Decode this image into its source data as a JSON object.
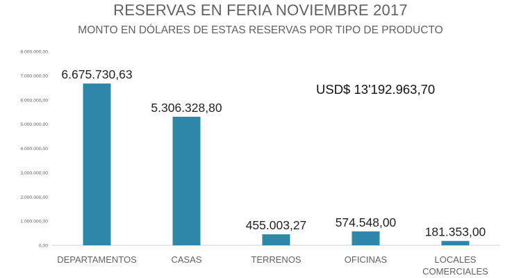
{
  "title": "RESERVAS EN FERIA NOVIEMBRE 2017",
  "subtitle": "MONTO EN DÓLARES DE ESTAS RESERVAS POR TIPO DE PRODUCTO",
  "total_label": "USD$ 13'192.963,70",
  "colors": {
    "bar": "#2e86a8",
    "text": "#5f6062",
    "axis": "#cfcfcf"
  },
  "chart_data": {
    "type": "bar",
    "title": "RESERVAS EN FERIA NOVIEMBRE 2017",
    "subtitle": "MONTO EN DÓLARES DE ESTAS RESERVAS POR TIPO DE PRODUCTO",
    "categories": [
      "DEPARTAMENTOS",
      "CASAS",
      "TERRENOS",
      "OFICINAS",
      "LOCALES COMERCIALES"
    ],
    "values": [
      6675730.63,
      5306328.8,
      455003.27,
      574548.0,
      181353.0
    ],
    "value_labels": [
      "6.675.730,63",
      "5.306.328,80",
      "455.003,27",
      "574.548,00",
      "181.353,00"
    ],
    "ylim": [
      0,
      8000000
    ],
    "yticks": [
      0,
      1000000,
      2000000,
      3000000,
      4000000,
      5000000,
      6000000,
      7000000,
      8000000
    ],
    "ytick_labels": [
      "0,00",
      "1.000.000,00",
      "2.000.000,00",
      "3.000.000,00",
      "4.000.000,00",
      "5.000.000,00",
      "6.000.000,00",
      "7.000.000,00",
      "8.000.000,00"
    ],
    "grid": false,
    "legend": "none"
  }
}
